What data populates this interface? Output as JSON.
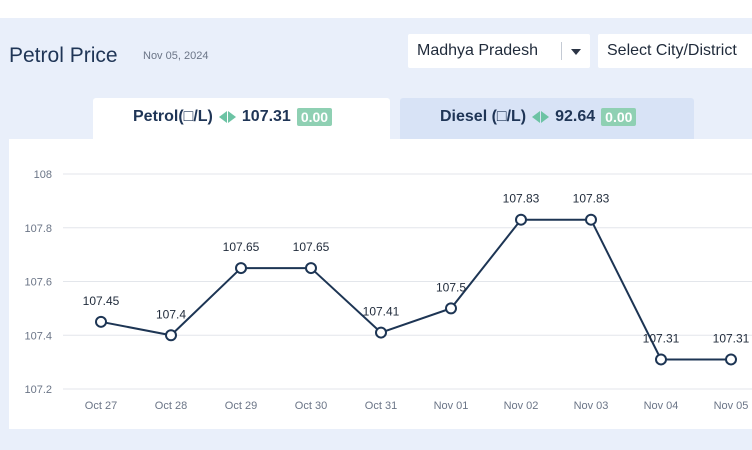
{
  "header": {
    "title": "Petrol Price",
    "date": "Nov 05, 2024"
  },
  "filters": {
    "state": "Madhya Pradesh",
    "city_placeholder": "Select City/District"
  },
  "tabs": [
    {
      "label": "Petrol(□/L)",
      "price": "107.31",
      "change": "0.00",
      "active": true
    },
    {
      "label": "Diesel (□/L)",
      "price": "92.64",
      "change": "0.00",
      "active": false
    }
  ],
  "colors": {
    "line": "#1d3554",
    "badge": "#8fd0b3",
    "arrows": "#6cc3a4",
    "panel": "#e9effa"
  },
  "chart_data": {
    "type": "line",
    "categories": [
      "Oct 27",
      "Oct 28",
      "Oct 29",
      "Oct 30",
      "Oct 31",
      "Nov 01",
      "Nov 02",
      "Nov 03",
      "Nov 04",
      "Nov 05"
    ],
    "values": [
      107.45,
      107.4,
      107.65,
      107.65,
      107.41,
      107.5,
      107.83,
      107.83,
      107.31,
      107.31
    ],
    "data_labels": [
      "107.45",
      "107.4",
      "107.65",
      "107.65",
      "107.41",
      "107.5",
      "107.83",
      "107.83",
      "107.31",
      "107.31"
    ],
    "yticks": [
      "107.2",
      "107.4",
      "107.6",
      "107.8",
      "108"
    ],
    "ylim": [
      107.2,
      108
    ],
    "grid": true
  }
}
